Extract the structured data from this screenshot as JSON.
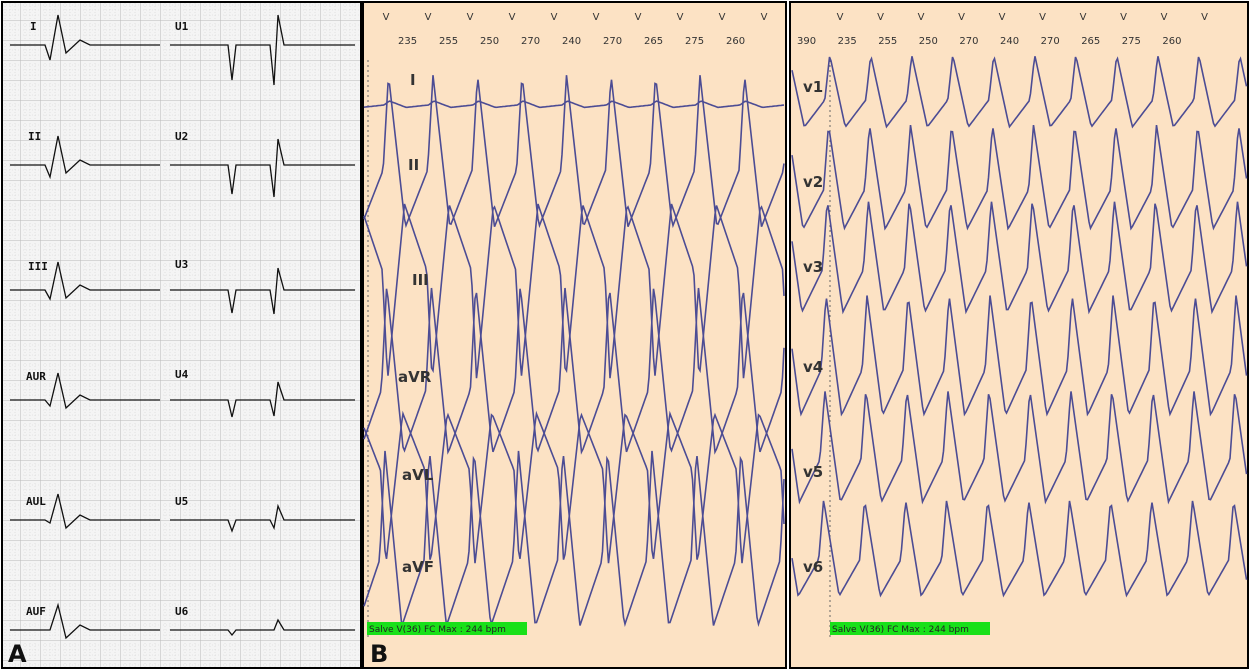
{
  "panel_a": {
    "label": "A",
    "leads": [
      "I",
      "U1",
      "II",
      "U2",
      "III",
      "U3",
      "AUR",
      "U4",
      "AUL",
      "U5",
      "AUF",
      "U6"
    ]
  },
  "panel_b": {
    "label": "B",
    "left": {
      "markers": [
        "V",
        "V",
        "V",
        "V",
        "V",
        "V",
        "V",
        "V",
        "V",
        "V"
      ],
      "intervals": [
        "235",
        "255",
        "250",
        "270",
        "240",
        "270",
        "265",
        "275",
        "260"
      ],
      "leads": [
        "I",
        "II",
        "III",
        "aVR",
        "aVL",
        "aVF"
      ],
      "status": "Salve V(36) FC Max : 244 bpm"
    },
    "right": {
      "markers": [
        "V",
        "V",
        "V",
        "V",
        "V",
        "V",
        "V",
        "V",
        "V",
        "V"
      ],
      "intervals": [
        "390",
        "235",
        "255",
        "250",
        "270",
        "240",
        "270",
        "265",
        "275",
        "260"
      ],
      "leads": [
        "v1",
        "v2",
        "v3",
        "v4",
        "v5",
        "v6"
      ],
      "status": "Salve V(36) FC Max : 244 bpm"
    }
  }
}
